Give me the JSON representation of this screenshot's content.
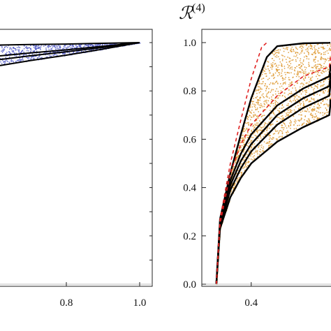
{
  "chart_data": [
    {
      "type": "scatter",
      "panel": "left (cropped)",
      "title": "",
      "xlabel": "",
      "ylabel": "",
      "xlim": [
        0.6,
        1.0
      ],
      "ylim": [
        0.0,
        1.0
      ],
      "xticks": [
        0.8,
        1.0
      ],
      "xtick_labels": [
        "0.8",
        "1.0"
      ],
      "point_color": "#5b63c9",
      "series": [
        {
          "kind": "boundary",
          "x": [
            0.6,
            0.7,
            0.8,
            0.9,
            1.0
          ],
          "y": [
            0.99,
            0.992,
            0.994,
            0.997,
            1.0
          ]
        },
        {
          "kind": "boundary",
          "x": [
            0.6,
            0.7,
            0.8,
            0.9,
            1.0
          ],
          "y": [
            0.945,
            0.957,
            0.97,
            0.985,
            1.0
          ]
        },
        {
          "kind": "boundary",
          "x": [
            0.6,
            0.7,
            0.8,
            0.9,
            1.0
          ],
          "y": [
            0.93,
            0.945,
            0.962,
            0.98,
            1.0
          ]
        },
        {
          "kind": "boundary",
          "x": [
            0.6,
            0.7,
            0.8,
            0.9,
            1.0
          ],
          "y": [
            0.905,
            0.925,
            0.948,
            0.973,
            1.0
          ]
        }
      ],
      "grid": false
    },
    {
      "type": "scatter",
      "panel": "right",
      "title_main": "ℛ",
      "title_sup": "(4)",
      "xlabel": "",
      "ylabel": "",
      "xlim": [
        0.25,
        0.65
      ],
      "ylim": [
        0.0,
        1.0
      ],
      "xticks": [
        0.4
      ],
      "xtick_labels": [
        "0.4"
      ],
      "yticks": [
        0.0,
        0.2,
        0.4,
        0.6,
        0.8,
        1.0
      ],
      "ytick_labels": [
        "0.0",
        "0.2",
        "0.4",
        "0.6",
        "0.8",
        "1.0"
      ],
      "point_color": "#e0a040",
      "dashed_color": "#e02020",
      "curve_origin_x": 0.333,
      "series": [
        {
          "kind": "boundary",
          "x": [
            0.333,
            0.34,
            0.36,
            0.38,
            0.4,
            0.43,
            0.45,
            0.5,
            0.55,
            0.65
          ],
          "y": [
            0.0,
            0.27,
            0.46,
            0.62,
            0.77,
            0.94,
            0.985,
            0.997,
            0.999,
            1.0
          ]
        },
        {
          "kind": "boundary",
          "x": [
            0.333,
            0.34,
            0.36,
            0.38,
            0.4,
            0.45,
            0.5,
            0.55,
            0.6,
            0.65
          ],
          "y": [
            0.0,
            0.26,
            0.43,
            0.54,
            0.62,
            0.74,
            0.81,
            0.86,
            0.89,
            0.91
          ]
        },
        {
          "kind": "boundary",
          "x": [
            0.333,
            0.34,
            0.36,
            0.38,
            0.4,
            0.45,
            0.5,
            0.55,
            0.6,
            0.65
          ],
          "y": [
            0.0,
            0.25,
            0.41,
            0.51,
            0.58,
            0.7,
            0.77,
            0.82,
            0.855,
            0.875
          ]
        },
        {
          "kind": "boundary",
          "x": [
            0.333,
            0.34,
            0.36,
            0.38,
            0.4,
            0.45,
            0.5,
            0.55,
            0.6,
            0.65
          ],
          "y": [
            0.0,
            0.24,
            0.39,
            0.48,
            0.55,
            0.66,
            0.73,
            0.78,
            0.82,
            0.845
          ]
        },
        {
          "kind": "boundary",
          "x": [
            0.333,
            0.34,
            0.36,
            0.38,
            0.4,
            0.45,
            0.5,
            0.55,
            0.6,
            0.65
          ],
          "y": [
            0.0,
            0.23,
            0.36,
            0.44,
            0.5,
            0.59,
            0.65,
            0.7,
            0.74,
            0.765
          ]
        },
        {
          "kind": "dashed-envelope",
          "x": [
            0.333,
            0.34,
            0.36,
            0.38,
            0.4,
            0.42,
            0.43
          ],
          "y": [
            0.0,
            0.27,
            0.5,
            0.68,
            0.85,
            0.98,
            1.0
          ]
        },
        {
          "kind": "dashed-envelope",
          "x": [
            0.333,
            0.34,
            0.36,
            0.38,
            0.4,
            0.45,
            0.5,
            0.55,
            0.6,
            0.65
          ],
          "y": [
            0.0,
            0.25,
            0.46,
            0.58,
            0.66,
            0.78,
            0.86,
            0.9,
            0.93,
            0.95
          ]
        }
      ],
      "grid": false
    }
  ]
}
